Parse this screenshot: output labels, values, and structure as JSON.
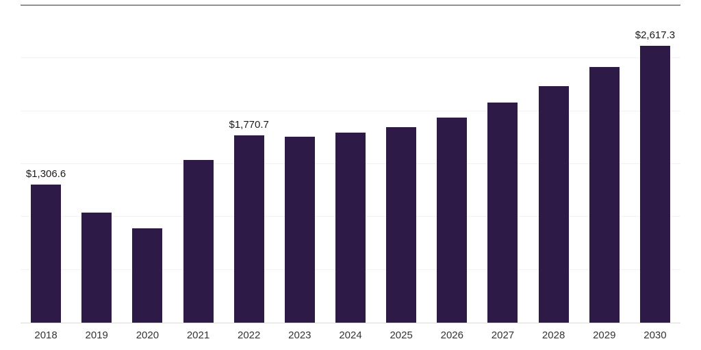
{
  "chart_data": {
    "type": "bar",
    "title": "",
    "xlabel": "",
    "ylabel": "",
    "categories": [
      "2018",
      "2019",
      "2020",
      "2021",
      "2022",
      "2023",
      "2024",
      "2025",
      "2026",
      "2027",
      "2028",
      "2029",
      "2030"
    ],
    "values": [
      1306.6,
      1040,
      890,
      1540,
      1770.7,
      1760,
      1800,
      1850,
      1940,
      2080,
      2240,
      2420,
      2617.3
    ],
    "labeled_points": [
      {
        "category": "2018",
        "label": "$1,306.6"
      },
      {
        "category": "2022",
        "label": "$1,770.7"
      },
      {
        "category": "2030",
        "label": "$2,617.3"
      }
    ],
    "ylim": [
      0,
      3000
    ],
    "gridline_step": 500,
    "grid": true,
    "legend": false,
    "bar_color": "#2e1a47",
    "label_color": "#1a1a1a",
    "axis_label_color": "#333333",
    "grid_color": "#f2f2f2",
    "top_rule_color": "#333333",
    "axis_line_color": "#d9d9d9"
  }
}
